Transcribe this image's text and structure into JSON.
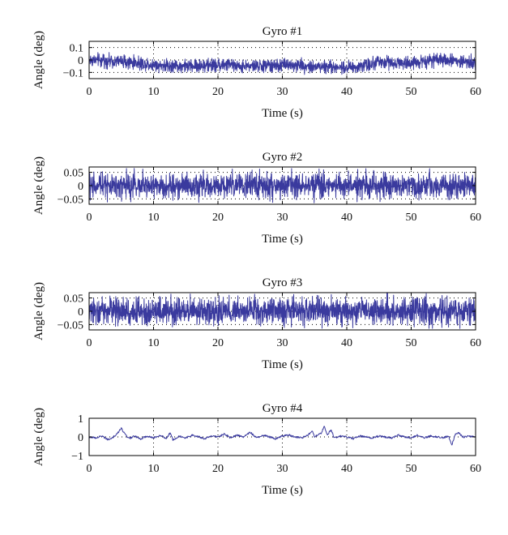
{
  "figure": {
    "trace_color": "#3a3a9e"
  },
  "chart_data": [
    {
      "type": "line",
      "title": "Gyro #1",
      "xlabel": "Time (s)",
      "ylabel": "Angle (deg)",
      "xlim": [
        0,
        60
      ],
      "ylim": [
        -0.15,
        0.15
      ],
      "xticks": [
        0,
        10,
        20,
        30,
        40,
        50,
        60
      ],
      "xtick_labels": [
        "0",
        "10",
        "20",
        "30",
        "40",
        "50",
        "60"
      ],
      "yticks": [
        0.1,
        0,
        -0.1
      ],
      "ytick_labels": [
        "0.1",
        "0",
        "−0.1"
      ],
      "grid": true,
      "series": [
        {
          "x": [
            0,
            5,
            10,
            15,
            20,
            25,
            30,
            35,
            40,
            45,
            50,
            55,
            60
          ],
          "baseline": [
            0.0,
            -0.01,
            -0.04,
            -0.05,
            -0.04,
            -0.05,
            -0.04,
            -0.05,
            -0.06,
            -0.02,
            -0.02,
            0.0,
            -0.02
          ],
          "noise_amplitude": 0.035,
          "spike_amplitude": 0.06,
          "samples": 1800
        }
      ]
    },
    {
      "type": "line",
      "title": "Gyro #2",
      "xlabel": "Time (s)",
      "ylabel": "Angle (deg)",
      "xlim": [
        0,
        60
      ],
      "ylim": [
        -0.07,
        0.07
      ],
      "xticks": [
        0,
        10,
        20,
        30,
        40,
        50,
        60
      ],
      "xtick_labels": [
        "0",
        "10",
        "20",
        "30",
        "40",
        "50",
        "60"
      ],
      "yticks": [
        0.05,
        0,
        -0.05
      ],
      "ytick_labels": [
        "0.05",
        "0",
        "−0.05"
      ],
      "grid": true,
      "series": [
        {
          "x": [
            0,
            5,
            10,
            15,
            20,
            25,
            30,
            35,
            40,
            45,
            50,
            55,
            60
          ],
          "baseline": [
            0,
            0,
            0,
            0,
            0,
            0,
            0,
            0,
            0,
            0,
            0,
            0,
            0
          ],
          "noise_amplitude": 0.03,
          "spike_amplitude": 0.065,
          "samples": 1800
        }
      ]
    },
    {
      "type": "line",
      "title": "Gyro #3",
      "xlabel": "Time (s)",
      "ylabel": "Angle (deg)",
      "xlim": [
        0,
        60
      ],
      "ylim": [
        -0.07,
        0.07
      ],
      "xticks": [
        0,
        10,
        20,
        30,
        40,
        50,
        60
      ],
      "xtick_labels": [
        "0",
        "10",
        "20",
        "30",
        "40",
        "50",
        "60"
      ],
      "yticks": [
        0.05,
        0,
        -0.05
      ],
      "ytick_labels": [
        "0.05",
        "0",
        "−0.05"
      ],
      "grid": true,
      "series": [
        {
          "x": [
            0,
            5,
            10,
            15,
            20,
            25,
            30,
            35,
            40,
            45,
            50,
            55,
            60
          ],
          "baseline": [
            0,
            0,
            0,
            0,
            0,
            0,
            0,
            0,
            0,
            0,
            0,
            0,
            0
          ],
          "noise_amplitude": 0.032,
          "spike_amplitude": 0.068,
          "samples": 1800
        }
      ]
    },
    {
      "type": "line",
      "title": "Gyro #4",
      "xlabel": "Time (s)",
      "ylabel": "Angle (deg)",
      "xlim": [
        0,
        60
      ],
      "ylim": [
        -1,
        1
      ],
      "xticks": [
        0,
        10,
        20,
        30,
        40,
        50,
        60
      ],
      "xtick_labels": [
        "0",
        "10",
        "20",
        "30",
        "40",
        "50",
        "60"
      ],
      "yticks": [
        1,
        0,
        -1
      ],
      "ytick_labels": [
        "1",
        "0",
        "−1"
      ],
      "grid": true,
      "series": [
        {
          "x": [
            0,
            1,
            2,
            3,
            4,
            5,
            5.6,
            6.2,
            7,
            8,
            9,
            10,
            11,
            12,
            12.6,
            13,
            14,
            15,
            16,
            17,
            18,
            19,
            20,
            21,
            22,
            23,
            24,
            25,
            26,
            27,
            28,
            29,
            30,
            31,
            32,
            33,
            34,
            34.6,
            35,
            36,
            36.5,
            37,
            37.6,
            38,
            39,
            40,
            41,
            42,
            43,
            44,
            45,
            46,
            47,
            48,
            49,
            50,
            51,
            52,
            53,
            54,
            55,
            55.8,
            56.3,
            56.8,
            57.3,
            58,
            59,
            60
          ],
          "y": [
            0.0,
            -0.05,
            0.05,
            -0.15,
            0.05,
            0.45,
            0.15,
            -0.1,
            0.05,
            -0.1,
            0.05,
            -0.05,
            0.1,
            -0.1,
            0.25,
            -0.15,
            0.05,
            -0.05,
            0.1,
            0.0,
            -0.1,
            0.05,
            0.0,
            0.15,
            -0.05,
            0.1,
            0.0,
            0.25,
            -0.05,
            0.1,
            0.0,
            -0.1,
            0.05,
            0.1,
            0.0,
            -0.05,
            0.1,
            0.35,
            0.0,
            0.2,
            0.55,
            0.1,
            0.4,
            -0.05,
            0.05,
            0.0,
            -0.1,
            0.05,
            0.0,
            -0.05,
            0.05,
            0.0,
            -0.05,
            0.1,
            0.0,
            -0.05,
            0.1,
            -0.05,
            0.05,
            0.0,
            -0.05,
            0.05,
            -0.45,
            0.1,
            0.25,
            0.0,
            0.05,
            0.0
          ],
          "noise_amplitude": 0.05,
          "spike_amplitude": 0.0,
          "samples": 900
        }
      ]
    }
  ]
}
